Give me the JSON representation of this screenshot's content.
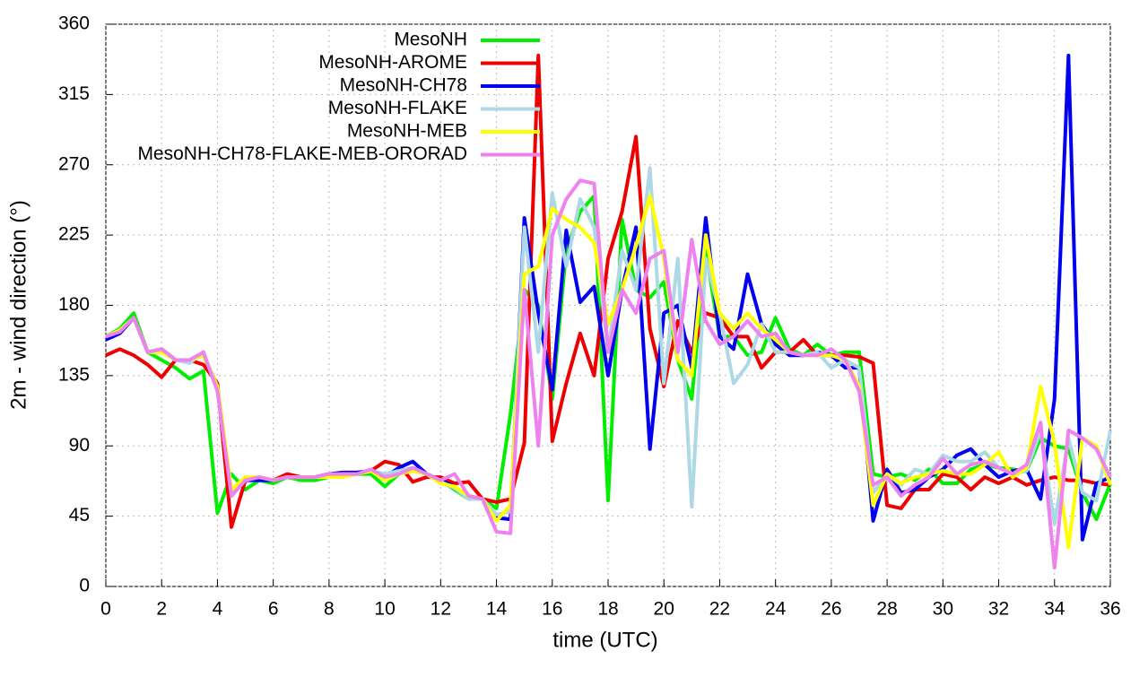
{
  "chart_data": {
    "type": "line",
    "xlabel": "time (UTC)",
    "ylabel": "2m - wind direction (°)",
    "x": [
      0,
      0.5,
      1,
      1.5,
      2,
      2.5,
      3,
      3.5,
      4,
      4.5,
      5,
      5.5,
      6,
      6.5,
      7,
      7.5,
      8,
      8.5,
      9,
      9.5,
      10,
      10.5,
      11,
      11.5,
      12,
      12.5,
      13,
      13.5,
      14,
      14.5,
      15,
      15.5,
      16,
      16.5,
      17,
      17.5,
      18,
      18.5,
      19,
      19.5,
      20,
      20.5,
      21,
      21.5,
      22,
      22.5,
      23,
      23.5,
      24,
      24.5,
      25,
      25.5,
      26,
      26.5,
      27,
      27.5,
      28,
      28.5,
      29,
      29.5,
      30,
      30.5,
      31,
      31.5,
      32,
      32.5,
      33,
      33.5,
      34,
      34.5,
      35,
      35.5,
      36
    ],
    "series": [
      {
        "name": "MesoNH",
        "color": "#00ee00",
        "values": [
          160,
          165,
          175,
          150,
          145,
          140,
          133,
          138,
          47,
          72,
          62,
          68,
          66,
          70,
          68,
          68,
          70,
          72,
          72,
          72,
          64,
          72,
          75,
          72,
          68,
          62,
          56,
          56,
          50,
          110,
          190,
          180,
          120,
          215,
          240,
          250,
          55,
          235,
          190,
          185,
          195,
          145,
          120,
          215,
          160,
          160,
          148,
          150,
          172,
          152,
          148,
          155,
          148,
          150,
          150,
          72,
          70,
          72,
          68,
          75,
          66,
          66,
          75,
          78,
          76,
          75,
          74,
          95,
          90,
          88,
          60,
          43,
          66
        ]
      },
      {
        "name": "MesoNH-AROME",
        "color": "#ee0000",
        "values": [
          148,
          152,
          148,
          142,
          134,
          145,
          145,
          142,
          130,
          38,
          68,
          70,
          68,
          72,
          70,
          70,
          72,
          72,
          72,
          74,
          80,
          78,
          67,
          70,
          70,
          66,
          67,
          56,
          54,
          56,
          92,
          340,
          93,
          130,
          162,
          135,
          210,
          240,
          288,
          165,
          128,
          170,
          150,
          175,
          172,
          160,
          160,
          140,
          150,
          150,
          158,
          148,
          148,
          148,
          147,
          143,
          52,
          50,
          62,
          62,
          72,
          70,
          62,
          70,
          66,
          70,
          65,
          68,
          70,
          68,
          68,
          66,
          65
        ]
      },
      {
        "name": "MesoNH-CH78",
        "color": "#0000ee",
        "values": [
          158,
          162,
          172,
          150,
          152,
          145,
          145,
          148,
          128,
          60,
          68,
          68,
          68,
          70,
          70,
          70,
          72,
          73,
          73,
          74,
          70,
          76,
          80,
          72,
          68,
          64,
          57,
          56,
          44,
          43,
          236,
          175,
          126,
          228,
          182,
          192,
          135,
          190,
          230,
          88,
          175,
          180,
          140,
          236,
          160,
          152,
          200,
          168,
          155,
          148,
          148,
          150,
          148,
          140,
          140,
          42,
          75,
          60,
          62,
          70,
          75,
          84,
          88,
          78,
          70,
          74,
          75,
          56,
          120,
          340,
          30,
          66,
          70
        ]
      },
      {
        "name": "MesoNH-FLAKE",
        "color": "#add8e6",
        "values": [
          160,
          164,
          172,
          150,
          150,
          145,
          143,
          150,
          126,
          60,
          68,
          70,
          68,
          70,
          70,
          70,
          71,
          72,
          72,
          74,
          72,
          74,
          76,
          72,
          67,
          63,
          56,
          56,
          46,
          48,
          230,
          150,
          252,
          205,
          248,
          230,
          150,
          215,
          190,
          268,
          130,
          210,
          51,
          210,
          175,
          130,
          142,
          168,
          150,
          150,
          148,
          150,
          140,
          145,
          140,
          60,
          72,
          65,
          75,
          72,
          84,
          80,
          80,
          86,
          76,
          72,
          74,
          100,
          40,
          95,
          60,
          55,
          100
        ]
      },
      {
        "name": "MesoNH-MEB",
        "color": "#ffff00",
        "values": [
          160,
          164,
          172,
          150,
          150,
          145,
          145,
          148,
          128,
          62,
          70,
          70,
          68,
          70,
          70,
          70,
          70,
          70,
          72,
          74,
          68,
          72,
          74,
          72,
          66,
          64,
          58,
          56,
          42,
          52,
          200,
          205,
          242,
          235,
          230,
          220,
          168,
          190,
          218,
          250,
          210,
          145,
          135,
          225,
          175,
          165,
          175,
          165,
          158,
          150,
          148,
          148,
          148,
          145,
          128,
          52,
          72,
          66,
          70,
          72,
          74,
          72,
          72,
          78,
          86,
          70,
          76,
          128,
          92,
          25,
          95,
          90,
          65
        ]
      },
      {
        "name": "MesoNH-CH78-FLAKE-MEB-ORORAD",
        "color": "#ee82ee",
        "values": [
          160,
          163,
          172,
          150,
          152,
          145,
          145,
          150,
          125,
          58,
          68,
          70,
          68,
          70,
          70,
          70,
          72,
          72,
          72,
          75,
          70,
          72,
          76,
          72,
          68,
          72,
          58,
          56,
          35,
          34,
          190,
          90,
          225,
          248,
          260,
          258,
          150,
          190,
          175,
          210,
          215,
          150,
          222,
          170,
          155,
          160,
          170,
          160,
          162,
          150,
          148,
          148,
          152,
          145,
          125,
          65,
          70,
          58,
          65,
          70,
          82,
          72,
          78,
          80,
          76,
          72,
          78,
          105,
          12,
          100,
          95,
          88,
          70
        ]
      }
    ],
    "xlim": [
      0,
      36
    ],
    "xticks": [
      0,
      2,
      4,
      6,
      8,
      10,
      12,
      14,
      16,
      18,
      20,
      22,
      24,
      26,
      28,
      30,
      32,
      34,
      36
    ],
    "ylim": [
      0,
      360
    ],
    "yticks": [
      0,
      45,
      90,
      135,
      180,
      225,
      270,
      315,
      360
    ],
    "grid": true
  }
}
